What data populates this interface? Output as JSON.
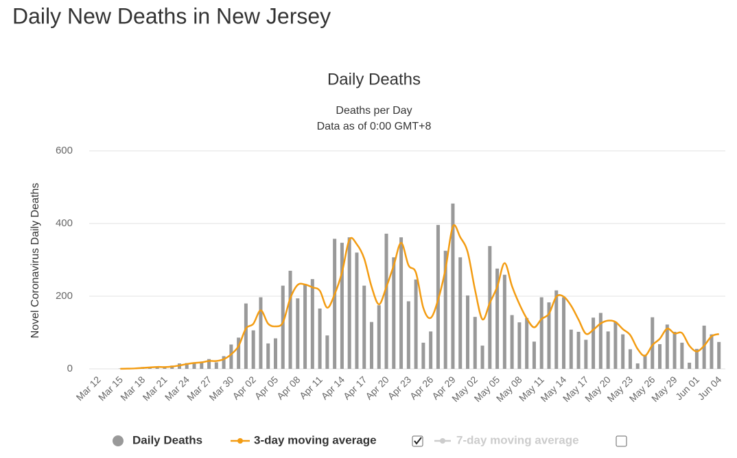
{
  "page_title": "Daily New Deaths in New Jersey",
  "chart_data": {
    "type": "bar_line",
    "title": "Daily Deaths",
    "subtitle": "Deaths per Day",
    "note": "Data as of 0:00 GMT+8",
    "y_label": "Novel Coronavirus Daily Deaths",
    "categories": [
      "Mar 12",
      null,
      null,
      "Mar 15",
      null,
      null,
      "Mar 18",
      null,
      null,
      "Mar 21",
      null,
      null,
      "Mar 24",
      null,
      null,
      "Mar 27",
      null,
      null,
      "Mar 30",
      null,
      null,
      "Apr 02",
      null,
      null,
      "Apr 05",
      null,
      null,
      "Apr 08",
      null,
      null,
      "Apr 11",
      null,
      null,
      "Apr 14",
      null,
      null,
      "Apr 17",
      null,
      null,
      "Apr 20",
      null,
      null,
      "Apr 23",
      null,
      null,
      "Apr 26",
      null,
      null,
      "Apr 29",
      null,
      null,
      "May 02",
      null,
      null,
      "May 05",
      null,
      null,
      "May 08",
      null,
      null,
      "May 11",
      null,
      null,
      "May 14",
      null,
      null,
      "May 17",
      null,
      null,
      "May 20",
      null,
      null,
      "May 23",
      null,
      null,
      "May 26",
      null,
      null,
      "May 29",
      null,
      null,
      "Jun 01",
      null,
      null,
      "Jun 04"
    ],
    "series": [
      {
        "name": "Daily Deaths",
        "type": "bar",
        "color": "#999999",
        "values": [
          0,
          0,
          0,
          1,
          1,
          2,
          5,
          5,
          6,
          4,
          9,
          15,
          16,
          18,
          20,
          27,
          18,
          35,
          67,
          86,
          180,
          106,
          197,
          70,
          84,
          229,
          270,
          194,
          232,
          247,
          166,
          92,
          358,
          347,
          362,
          320,
          229,
          129,
          175,
          372,
          307,
          362,
          186,
          246,
          72,
          103,
          396,
          325,
          455,
          307,
          202,
          143,
          64,
          338,
          276,
          259,
          148,
          128,
          140,
          75,
          197,
          183,
          216,
          197,
          108,
          102,
          80,
          141,
          154,
          103,
          130,
          95,
          54,
          15,
          39,
          142,
          68,
          122,
          102,
          72,
          17,
          55,
          119,
          95,
          74
        ]
      },
      {
        "name": "3-day moving average",
        "type": "line",
        "color": "#f39c12",
        "values": [
          null,
          null,
          null,
          0.3,
          0.7,
          1.3,
          2.7,
          4,
          5.3,
          5,
          6.3,
          9.3,
          13.3,
          16.3,
          18,
          21.7,
          21.7,
          26.7,
          40,
          62.7,
          111,
          124,
          161,
          124.3,
          117,
          127.7,
          194.3,
          231,
          232,
          224.3,
          215,
          168.3,
          205.3,
          265.7,
          355.7,
          343,
          303.7,
          226,
          177.7,
          225.3,
          284.7,
          347,
          285,
          264.7,
          168,
          140.3,
          190.3,
          274.7,
          392,
          362.3,
          321.3,
          217.3,
          136.3,
          181.7,
          226,
          291,
          227.7,
          178.3,
          138.7,
          114.3,
          137.3,
          151.7,
          198.7,
          198.7,
          173.7,
          135.7,
          96.7,
          107.7,
          125,
          132.7,
          129,
          109.3,
          93,
          54.7,
          36,
          65.3,
          83,
          110.7,
          97.3,
          98.7,
          63.7,
          48,
          63.7,
          89.7,
          96
        ]
      }
    ],
    "hidden_series": [
      {
        "name": "7-day moving average",
        "color": "#cccccc"
      }
    ],
    "ylim": [
      0,
      600
    ],
    "yticks": [
      0,
      200,
      400,
      600
    ],
    "grid": true
  }
}
